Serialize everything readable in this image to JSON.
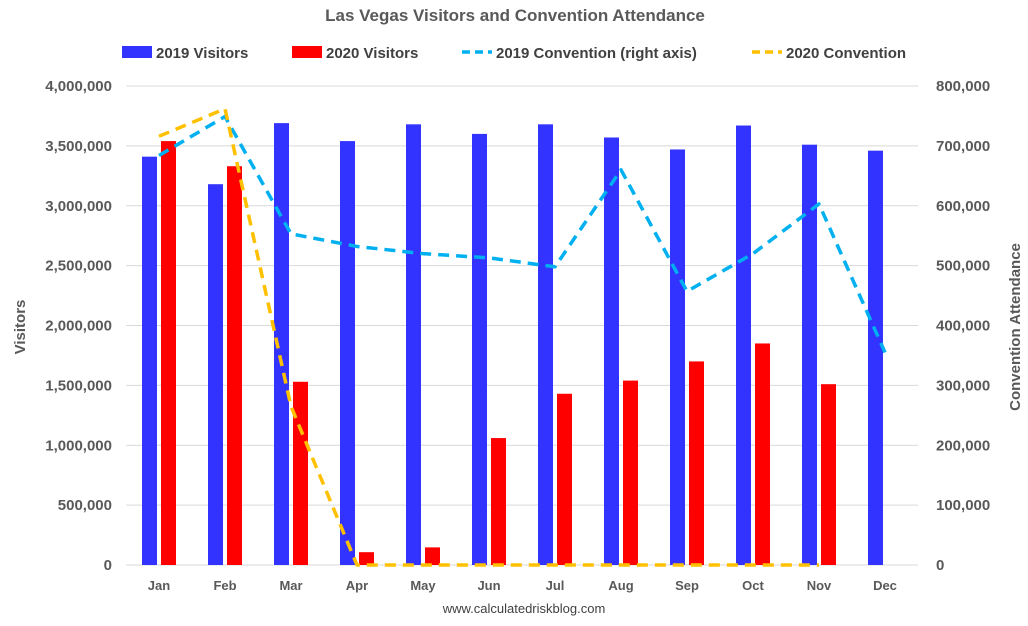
{
  "chart_data": {
    "type": "bar",
    "title": "Las Vegas Visitors and Convention Attendance",
    "source": "www.calculatedriskblog.com",
    "categories": [
      "Jan",
      "Feb",
      "Mar",
      "Apr",
      "May",
      "Jun",
      "Jul",
      "Aug",
      "Sep",
      "Oct",
      "Nov",
      "Dec"
    ],
    "ylabel": "Visitors",
    "y2label": "Convention Attendance",
    "ylim": [
      0,
      4000000
    ],
    "y2lim": [
      0,
      800000
    ],
    "yticks": [
      "0",
      "500,000",
      "1,000,000",
      "1,500,000",
      "2,000,000",
      "2,500,000",
      "3,000,000",
      "3,500,000",
      "4,000,000"
    ],
    "y2ticks": [
      "0",
      "100,000",
      "200,000",
      "300,000",
      "400,000",
      "500,000",
      "600,000",
      "700,000",
      "800,000"
    ],
    "grid": true,
    "legend_position": "top",
    "series": [
      {
        "name": "2019 Visitors",
        "kind": "bar",
        "axis": "left",
        "color": "#3333ff",
        "values": [
          3410000,
          3180000,
          3690000,
          3540000,
          3680000,
          3600000,
          3680000,
          3570000,
          3470000,
          3670000,
          3510000,
          3460000
        ]
      },
      {
        "name": "2020 Visitors",
        "kind": "bar",
        "axis": "left",
        "color": "#ff0000",
        "values": [
          3540000,
          3330000,
          1530000,
          107000,
          147000,
          1060000,
          1430000,
          1540000,
          1700000,
          1850000,
          1510000,
          null
        ]
      },
      {
        "name": "2019 Convention (right axis)",
        "kind": "line",
        "axis": "right",
        "color": "#00b0f0",
        "values": [
          684000,
          749000,
          553000,
          532000,
          520000,
          513000,
          498000,
          660000,
          457000,
          520000,
          603000,
          355000
        ]
      },
      {
        "name": "2020 Convention",
        "kind": "line",
        "axis": "right",
        "color": "#ffc000",
        "values": [
          716000,
          762000,
          265000,
          0,
          0,
          0,
          0,
          0,
          0,
          0,
          0,
          null
        ]
      }
    ]
  }
}
